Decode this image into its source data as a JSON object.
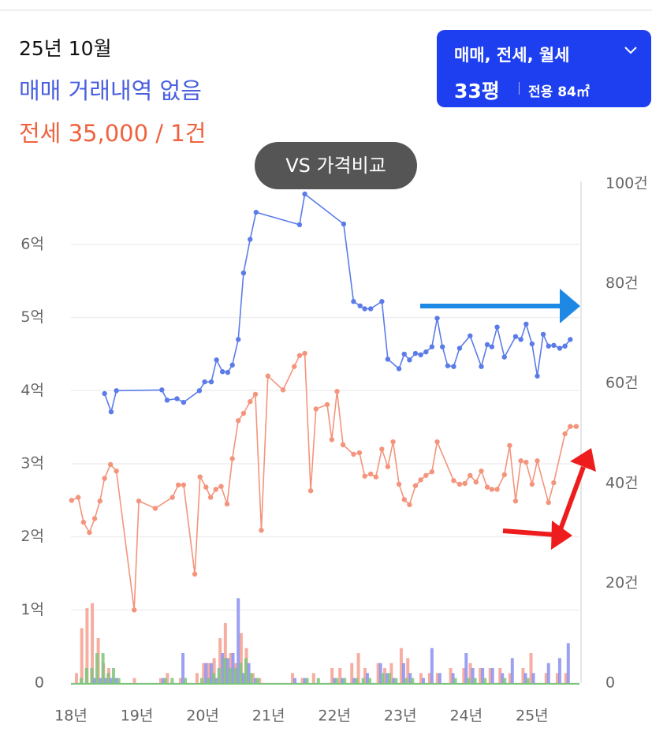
{
  "header": {
    "date": "25년 10월",
    "sale": "매매 거래내역 없음",
    "jeonse": "전세 35,000 / 1건"
  },
  "filter": {
    "deal_types": "매매, 전세, 월세",
    "size": "33평",
    "area": "전용 84㎡"
  },
  "compare_button": "VS 가격비교",
  "chart_data": {
    "type": "line",
    "grid": true,
    "xlim": [
      2018,
      2025.72
    ],
    "xticks": [
      {
        "value": 2018,
        "label": "18년"
      },
      {
        "value": 2019,
        "label": "19년"
      },
      {
        "value": 2020,
        "label": "20년"
      },
      {
        "value": 2021,
        "label": "21년"
      },
      {
        "value": 2022,
        "label": "22년"
      },
      {
        "value": 2023,
        "label": "23년"
      },
      {
        "value": 2024,
        "label": "24년"
      },
      {
        "value": 2025,
        "label": "25년"
      }
    ],
    "ylim": [
      0,
      6.83
    ],
    "yticks": [
      0,
      {
        "value": 1,
        "label": "1억"
      },
      {
        "value": 2,
        "label": "2억"
      },
      {
        "value": 3,
        "label": "3억"
      },
      {
        "value": 4,
        "label": "4억"
      },
      {
        "value": 5,
        "label": "5억"
      },
      {
        "value": 6,
        "label": "6억"
      }
    ],
    "y2lim": [
      0,
      100
    ],
    "y2ticks": [
      0,
      {
        "value": 20,
        "label": "20건"
      },
      {
        "value": 40,
        "label": "40건"
      },
      {
        "value": 60,
        "label": "60건"
      },
      {
        "value": 80,
        "label": "80건"
      },
      {
        "value": 100,
        "label": "100건"
      }
    ],
    "series": [
      {
        "color": "#5b7ce8",
        "x": [
          2018.51,
          2018.61,
          2018.69,
          2019.38,
          2019.46,
          2019.61,
          2019.71,
          2019.95,
          2020.03,
          2020.13,
          2020.21,
          2020.3,
          2020.38,
          2020.45,
          2020.54,
          2020.62,
          2020.72,
          2020.81,
          2021.47,
          2021.55,
          2022.14,
          2022.29,
          2022.39,
          2022.46,
          2022.55,
          2022.72,
          2022.81,
          2022.98,
          2023.06,
          2023.14,
          2023.23,
          2023.31,
          2023.39,
          2023.48,
          2023.56,
          2023.64,
          2023.72,
          2023.81,
          2023.9,
          2024.06,
          2024.23,
          2024.32,
          2024.39,
          2024.47,
          2024.58,
          2024.75,
          2024.83,
          2024.91,
          2025.0,
          2025.08,
          2025.17,
          2025.25,
          2025.33,
          2025.42,
          2025.5,
          2025.58
        ],
        "values": [
          3.96,
          3.71,
          4.0,
          4.01,
          3.87,
          3.89,
          3.84,
          4.0,
          4.12,
          4.12,
          4.42,
          4.26,
          4.25,
          4.35,
          4.7,
          5.61,
          6.07,
          6.44,
          6.27,
          6.69,
          6.28,
          5.22,
          5.16,
          5.12,
          5.12,
          5.22,
          4.43,
          4.3,
          4.5,
          4.42,
          4.51,
          4.49,
          4.53,
          4.6,
          4.99,
          4.6,
          4.34,
          4.33,
          4.58,
          4.75,
          4.33,
          4.63,
          4.6,
          4.87,
          4.46,
          4.74,
          4.7,
          4.91,
          4.64,
          4.2,
          4.77,
          4.61,
          4.62,
          4.58,
          4.61,
          4.7
        ]
      },
      {
        "color": "#f4947c",
        "x": [
          2018.01,
          2018.11,
          2018.19,
          2018.28,
          2018.36,
          2018.44,
          2018.51,
          2018.6,
          2018.69,
          2018.96,
          2019.03,
          2019.28,
          2019.54,
          2019.63,
          2019.71,
          2019.88,
          2019.96,
          2020.05,
          2020.12,
          2020.2,
          2020.28,
          2020.37,
          2020.45,
          2020.54,
          2020.62,
          2020.72,
          2020.8,
          2020.89,
          2020.99,
          2021.22,
          2021.39,
          2021.47,
          2021.55,
          2021.64,
          2021.72,
          2021.89,
          2021.96,
          2022.04,
          2022.13,
          2022.29,
          2022.38,
          2022.46,
          2022.55,
          2022.63,
          2022.72,
          2022.81,
          2022.89,
          2022.98,
          2023.06,
          2023.14,
          2023.23,
          2023.31,
          2023.39,
          2023.48,
          2023.56,
          2023.81,
          2023.9,
          2023.98,
          2024.06,
          2024.15,
          2024.23,
          2024.32,
          2024.39,
          2024.47,
          2024.58,
          2024.66,
          2024.75,
          2024.83,
          2024.91,
          2025.0,
          2025.08,
          2025.25,
          2025.33,
          2025.5,
          2025.58,
          2025.67
        ],
        "values": [
          2.5,
          2.54,
          2.2,
          2.06,
          2.25,
          2.49,
          2.8,
          2.99,
          2.9,
          1.0,
          2.49,
          2.39,
          2.54,
          2.71,
          2.71,
          1.49,
          2.82,
          2.68,
          2.54,
          2.65,
          2.69,
          2.45,
          3.07,
          3.59,
          3.69,
          3.85,
          3.95,
          2.09,
          4.2,
          4.01,
          4.33,
          4.48,
          4.51,
          2.63,
          3.75,
          3.81,
          3.33,
          3.99,
          3.26,
          3.13,
          3.15,
          2.83,
          2.86,
          2.82,
          3.2,
          2.96,
          3.3,
          2.72,
          2.51,
          2.44,
          2.7,
          2.78,
          2.84,
          2.89,
          3.3,
          2.77,
          2.72,
          2.73,
          2.84,
          2.75,
          2.9,
          2.68,
          2.65,
          2.65,
          2.85,
          3.25,
          2.49,
          3.04,
          3.02,
          2.72,
          3.04,
          2.47,
          2.74,
          3.41,
          3.51,
          3.51
        ]
      }
    ],
    "volume": {
      "type": "bar",
      "axis": "y2",
      "x": [
        2018.12,
        2018.2,
        2018.28,
        2018.36,
        2018.45,
        2018.53,
        2018.61,
        2018.69,
        2019.0,
        2019.4,
        2019.5,
        2019.7,
        2019.95,
        2020.05,
        2020.13,
        2020.21,
        2020.3,
        2020.38,
        2020.46,
        2020.54,
        2020.62,
        2020.7,
        2020.8,
        2020.9,
        2021.4,
        2021.55,
        2021.72,
        2022.0,
        2022.12,
        2022.3,
        2022.4,
        2022.5,
        2022.7,
        2022.8,
        2022.9,
        2023.05,
        2023.15,
        2023.35,
        2023.48,
        2023.6,
        2023.8,
        2024.0,
        2024.1,
        2024.25,
        2024.4,
        2024.55,
        2024.7,
        2024.9,
        2025.02,
        2025.25,
        2025.42,
        2025.55
      ],
      "series": [
        {
          "color": "#f4a090",
          "values": [
            2,
            11,
            15,
            16,
            9,
            4,
            3,
            1,
            1,
            1,
            2,
            1,
            2,
            4,
            4,
            5,
            9,
            12,
            6,
            4,
            10,
            7,
            2,
            1,
            2,
            1,
            2,
            3,
            3,
            4,
            6,
            3,
            4,
            3,
            4,
            7,
            5,
            2,
            2,
            2,
            3,
            3,
            4,
            3,
            3,
            3,
            2,
            3,
            6,
            2,
            2,
            2
          ]
        },
        {
          "color": "#8a8ff0",
          "values": [
            0,
            0,
            0,
            1,
            1,
            1,
            1,
            1,
            0,
            1,
            0,
            6,
            0,
            4,
            4,
            1,
            6,
            5,
            6,
            17,
            2,
            4,
            1,
            0,
            1,
            1,
            0,
            1,
            1,
            1,
            0,
            2,
            4,
            2,
            1,
            4,
            2,
            1,
            7,
            2,
            2,
            6,
            3,
            3,
            3,
            2,
            5,
            2,
            2,
            4,
            5,
            8
          ]
        },
        {
          "color": "#7cc47c",
          "values": [
            1,
            3,
            3,
            6,
            6,
            2,
            3,
            1,
            0,
            1,
            1,
            1,
            1,
            1,
            2,
            3,
            5,
            3,
            3,
            4,
            5,
            2,
            1,
            0,
            0,
            1,
            1,
            1,
            1,
            1,
            1,
            1,
            2,
            2,
            1,
            1,
            1,
            0,
            0,
            0,
            1,
            1,
            1,
            1,
            0,
            1,
            0,
            1,
            0,
            0,
            0,
            0
          ]
        }
      ]
    }
  }
}
